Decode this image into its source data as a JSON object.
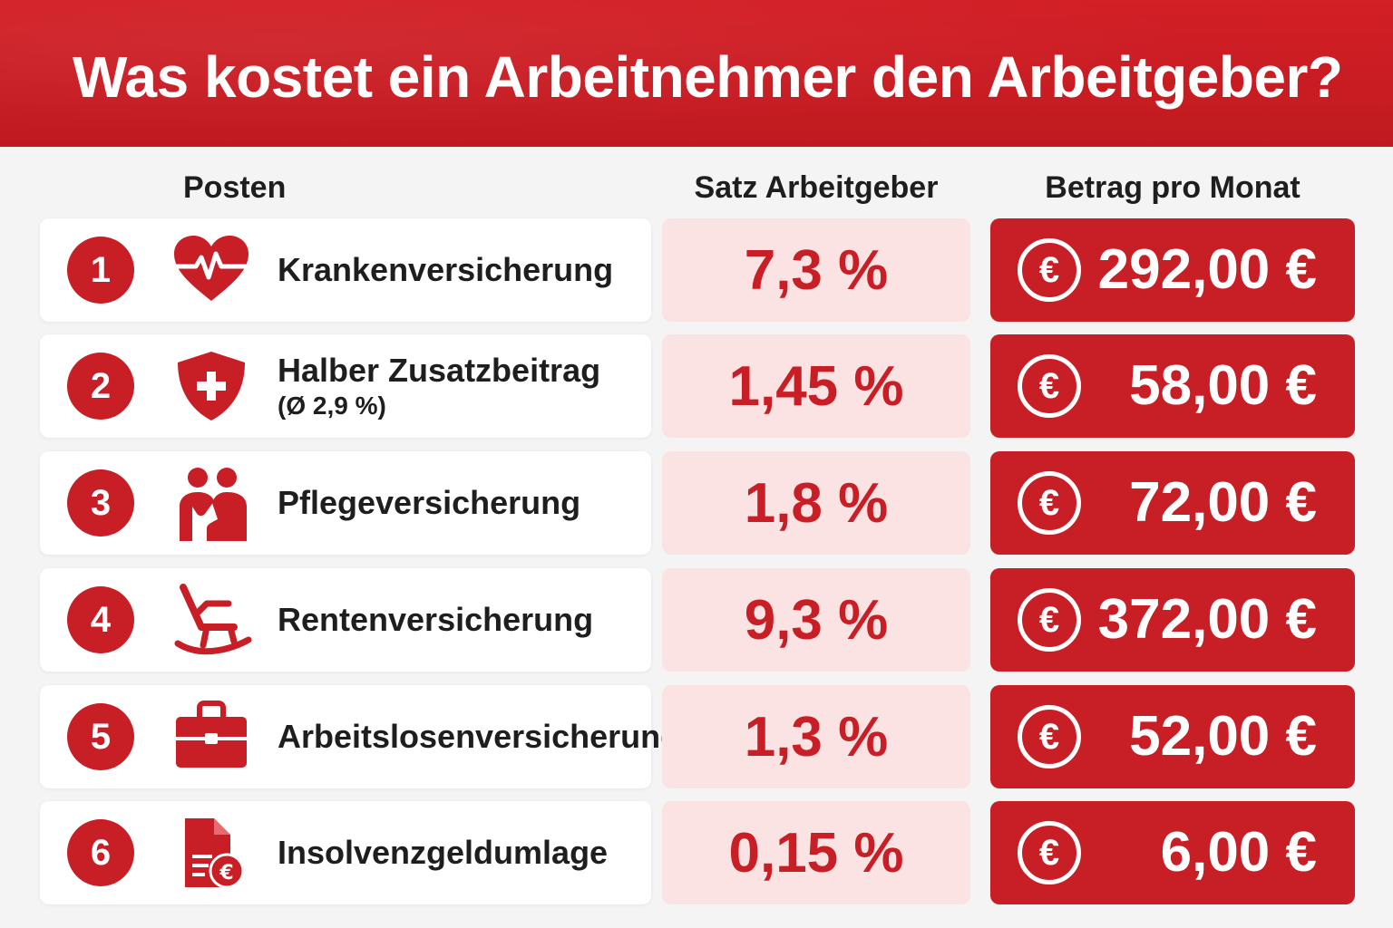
{
  "title": "Was kostet ein Arbeitnehmer den Arbeitgeber?",
  "columns": {
    "posten": "Posten",
    "satz": "Satz Arbeitgeber",
    "betrag": "Betrag pro Monat"
  },
  "rows": [
    {
      "num": "1",
      "icon": "heart-pulse-icon",
      "label": "Krankenversicherung",
      "sublabel": "",
      "rate": "7,3 %",
      "amount": "292,00 €"
    },
    {
      "num": "2",
      "icon": "shield-plus-icon",
      "label": "Halber Zusatzbeitrag",
      "sublabel": "(Ø 2,9 %)",
      "rate": "1,45 %",
      "amount": "58,00 €"
    },
    {
      "num": "3",
      "icon": "care-people-icon",
      "label": "Pflegeversicherung",
      "sublabel": "",
      "rate": "1,8 %",
      "amount": "72,00 €"
    },
    {
      "num": "4",
      "icon": "rocking-chair-icon",
      "label": "Rentenversicherung",
      "sublabel": "",
      "rate": "9,3 %",
      "amount": "372,00 €"
    },
    {
      "num": "5",
      "icon": "briefcase-icon",
      "label": "Arbeitslosenversicherung",
      "sublabel": "",
      "rate": "1,3 %",
      "amount": "52,00 €"
    },
    {
      "num": "6",
      "icon": "document-euro-icon",
      "label": "Insolvenzgeldumlage",
      "sublabel": "",
      "rate": "0,15 %",
      "amount": "6,00 €"
    }
  ],
  "euro_symbol": "€",
  "colors": {
    "brand_red": "#c81e25",
    "rate_bg": "#fbe3e3",
    "text_dark": "#1e1e1e"
  }
}
